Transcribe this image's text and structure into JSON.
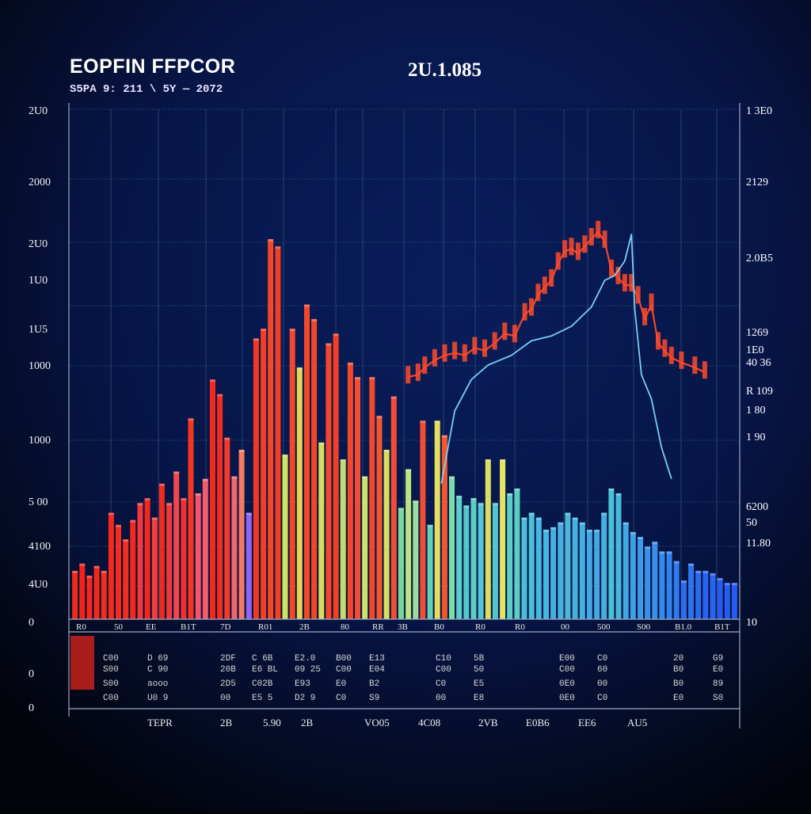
{
  "title": "EOPFIN FFPCOR",
  "subtitle": "S5PA 9: 211 \\ 5Y — 2072",
  "date_label": "2U.1.085",
  "colors": {
    "background": "#02040c",
    "plot_background": "#0a1a4a",
    "grid": "#2a4a7a",
    "line_red": "#ff4a2a",
    "line_blue": "#7fd8ff",
    "text": "#ffffff"
  },
  "chart_data": {
    "type": "bar",
    "title": "EOPFIN FFPCOR",
    "subtitle": "S5PA 9: 211 \\ 5Y — 2072",
    "ylim": [
      0,
      2100
    ],
    "grid": true,
    "left_axis_labels": [
      "2U0",
      "2000",
      "2U0",
      "1U0",
      "1U5",
      "1000",
      "1000",
      "5 00",
      "4100",
      "4U0",
      "0",
      "0",
      "0"
    ],
    "right_axis_labels": [
      "1 3E0",
      "2129",
      "2.0B5",
      "1269",
      "1E0",
      "40 36",
      "R 109",
      "1 80",
      "1 90",
      "6200",
      "50",
      "11.80",
      "10"
    ],
    "x_tick_labels": [
      "R0",
      "50",
      "EE",
      "B1T",
      "7D",
      "R01",
      "2B",
      "80",
      "RR",
      "3B",
      "B0",
      "R0",
      "R0",
      "00",
      "500",
      "S00",
      "B1.0",
      "B1T"
    ],
    "table_rows": [
      [
        "C00",
        "D 69",
        "2DF",
        "C 6B",
        "E2.0",
        "B00",
        "E13",
        "C10",
        "5B",
        "E00",
        "C0",
        "20",
        "G9"
      ],
      [
        "S00",
        "C 90",
        "20B",
        "E6 BL",
        "09 25",
        "C00",
        "E04",
        "C00",
        "50",
        "C00",
        "60",
        "B0",
        "E0"
      ],
      [
        "S00",
        "aooo",
        "2D5",
        "C02B",
        "E93",
        "E0",
        "B2",
        "C0",
        "E5",
        "0E0",
        "00",
        "B0",
        "89"
      ],
      [
        "C00",
        "U0 9",
        "00",
        "E5 5",
        "D2 9",
        "C0",
        "S9",
        "00",
        "E8",
        "0E0",
        "C0",
        "E0",
        "S0"
      ]
    ],
    "footer_labels": [
      "TEPR",
      "2B",
      "5.90",
      "2B",
      "VO05",
      "4C08",
      "2VB",
      "E0B6",
      "EE6",
      "AU5"
    ],
    "bars": [
      {
        "v": 200,
        "c": "#ff2a1a"
      },
      {
        "v": 230,
        "c": "#ff2418"
      },
      {
        "v": 180,
        "c": "#ff2a1a"
      },
      {
        "v": 220,
        "c": "#ff2a1a"
      },
      {
        "v": 200,
        "c": "#ff2e1c"
      },
      {
        "v": 440,
        "c": "#ff2a1a"
      },
      {
        "v": 390,
        "c": "#ff2e1c"
      },
      {
        "v": 330,
        "c": "#ff3020"
      },
      {
        "v": 410,
        "c": "#ff2a1a"
      },
      {
        "v": 480,
        "c": "#ff3a3a"
      },
      {
        "v": 500,
        "c": "#ff2a1a"
      },
      {
        "v": 420,
        "c": "#ff4040"
      },
      {
        "v": 560,
        "c": "#ff2a1a"
      },
      {
        "v": 480,
        "c": "#ff3a3a"
      },
      {
        "v": 610,
        "c": "#ff4a4a"
      },
      {
        "v": 500,
        "c": "#ff3030"
      },
      {
        "v": 830,
        "c": "#ff3820"
      },
      {
        "v": 520,
        "c": "#ff5a6a"
      },
      {
        "v": 580,
        "c": "#ff6070"
      },
      {
        "v": 990,
        "c": "#ff2a1a"
      },
      {
        "v": 930,
        "c": "#ff2e1c"
      },
      {
        "v": 750,
        "c": "#ff3b2b"
      },
      {
        "v": 590,
        "c": "#ff6a70"
      },
      {
        "v": 700,
        "c": "#ff8060"
      },
      {
        "v": 440,
        "c": "#9a6aff"
      },
      {
        "v": 1160,
        "c": "#ff3a20"
      },
      {
        "v": 1200,
        "c": "#ff4020"
      },
      {
        "v": 1570,
        "c": "#ff4a28"
      },
      {
        "v": 1540,
        "c": "#ff4020"
      },
      {
        "v": 680,
        "c": "#d8f060"
      },
      {
        "v": 1200,
        "c": "#ff4a28"
      },
      {
        "v": 1040,
        "c": "#f0e050"
      },
      {
        "v": 1300,
        "c": "#ff4a28"
      },
      {
        "v": 1240,
        "c": "#ff4a20"
      },
      {
        "v": 730,
        "c": "#e0e860"
      },
      {
        "v": 1140,
        "c": "#ff4a28"
      },
      {
        "v": 1180,
        "c": "#ff4020"
      },
      {
        "v": 660,
        "c": "#c8e870"
      },
      {
        "v": 1060,
        "c": "#ff4a28"
      },
      {
        "v": 1000,
        "c": "#ff5030"
      },
      {
        "v": 590,
        "c": "#d0f070"
      },
      {
        "v": 1000,
        "c": "#ff4a28"
      },
      {
        "v": 840,
        "c": "#ff5a30"
      },
      {
        "v": 700,
        "c": "#e8e860"
      },
      {
        "v": 920,
        "c": "#ff5030"
      },
      {
        "v": 460,
        "c": "#80e0a0"
      },
      {
        "v": 620,
        "c": "#c8f080"
      },
      {
        "v": 490,
        "c": "#a0e8a0"
      },
      {
        "v": 820,
        "c": "#ff5030"
      },
      {
        "v": 390,
        "c": "#6ad8c0"
      },
      {
        "v": 820,
        "c": "#f0e860"
      },
      {
        "v": 760,
        "c": "#ff5a30"
      },
      {
        "v": 590,
        "c": "#80e8b0"
      },
      {
        "v": 510,
        "c": "#60d8d0"
      },
      {
        "v": 470,
        "c": "#58d0d0"
      },
      {
        "v": 500,
        "c": "#60d8c8"
      },
      {
        "v": 480,
        "c": "#5ad0d8"
      },
      {
        "v": 660,
        "c": "#e8e860"
      },
      {
        "v": 480,
        "c": "#58d0d8"
      },
      {
        "v": 660,
        "c": "#f0f060"
      },
      {
        "v": 520,
        "c": "#60d8d0"
      },
      {
        "v": 540,
        "c": "#60d8c8"
      },
      {
        "v": 420,
        "c": "#50c8e0"
      },
      {
        "v": 440,
        "c": "#50c8e0"
      },
      {
        "v": 420,
        "c": "#4ac0e8"
      },
      {
        "v": 370,
        "c": "#48c0e8"
      },
      {
        "v": 380,
        "c": "#48b8e8"
      },
      {
        "v": 400,
        "c": "#4ab8e8"
      },
      {
        "v": 440,
        "c": "#50c0e0"
      },
      {
        "v": 420,
        "c": "#4ab8e8"
      },
      {
        "v": 400,
        "c": "#48b8e8"
      },
      {
        "v": 370,
        "c": "#46b0ea"
      },
      {
        "v": 370,
        "c": "#44b0ec"
      },
      {
        "v": 440,
        "c": "#48b8e8"
      },
      {
        "v": 540,
        "c": "#50c8e0"
      },
      {
        "v": 520,
        "c": "#4cc0e4"
      },
      {
        "v": 400,
        "c": "#44b0ec"
      },
      {
        "v": 360,
        "c": "#40a8ee"
      },
      {
        "v": 340,
        "c": "#3ea0f0"
      },
      {
        "v": 300,
        "c": "#3a98f2"
      },
      {
        "v": 320,
        "c": "#3a98f2"
      },
      {
        "v": 280,
        "c": "#3690f4"
      },
      {
        "v": 280,
        "c": "#3488f6"
      },
      {
        "v": 240,
        "c": "#3280f8"
      },
      {
        "v": 160,
        "c": "#2e70fa"
      },
      {
        "v": 230,
        "c": "#2e78fa"
      },
      {
        "v": 200,
        "c": "#2c70fa"
      },
      {
        "v": 200,
        "c": "#2a68fc"
      },
      {
        "v": 190,
        "c": "#2a68fc"
      },
      {
        "v": 170,
        "c": "#2860fc"
      },
      {
        "v": 150,
        "c": "#2660fc"
      },
      {
        "v": 150,
        "c": "#2660fc"
      }
    ],
    "series": [
      {
        "color": "#ff4a2a",
        "x": [
          0.505,
          0.52,
          0.53,
          0.545,
          0.56,
          0.575,
          0.59,
          0.605,
          0.62,
          0.635,
          0.65,
          0.665,
          0.68,
          0.69,
          0.7,
          0.71,
          0.72,
          0.73,
          0.74,
          0.75,
          0.76,
          0.77,
          0.78,
          0.79,
          0.8,
          0.81,
          0.82,
          0.83,
          0.84,
          0.85,
          0.86,
          0.87,
          0.88,
          0.89,
          0.9,
          0.915,
          0.935,
          0.95
        ],
        "y": [
          1000,
          1010,
          1040,
          1070,
          1090,
          1100,
          1090,
          1120,
          1110,
          1140,
          1180,
          1170,
          1260,
          1280,
          1340,
          1370,
          1400,
          1470,
          1520,
          1530,
          1510,
          1540,
          1570,
          1600,
          1560,
          1440,
          1410,
          1380,
          1380,
          1330,
          1240,
          1300,
          1140,
          1110,
          1080,
          1060,
          1040,
          1020
        ]
      },
      {
        "color": "#7fd8ff",
        "x": [
          0.555,
          0.575,
          0.6,
          0.625,
          0.66,
          0.69,
          0.72,
          0.75,
          0.78,
          0.8,
          0.815,
          0.83,
          0.84,
          0.845,
          0.855,
          0.87,
          0.885,
          0.9
        ],
        "y": [
          560,
          860,
          990,
          1050,
          1090,
          1150,
          1170,
          1210,
          1290,
          1400,
          1420,
          1480,
          1590,
          1280,
          1010,
          910,
          710,
          580
        ]
      }
    ]
  }
}
